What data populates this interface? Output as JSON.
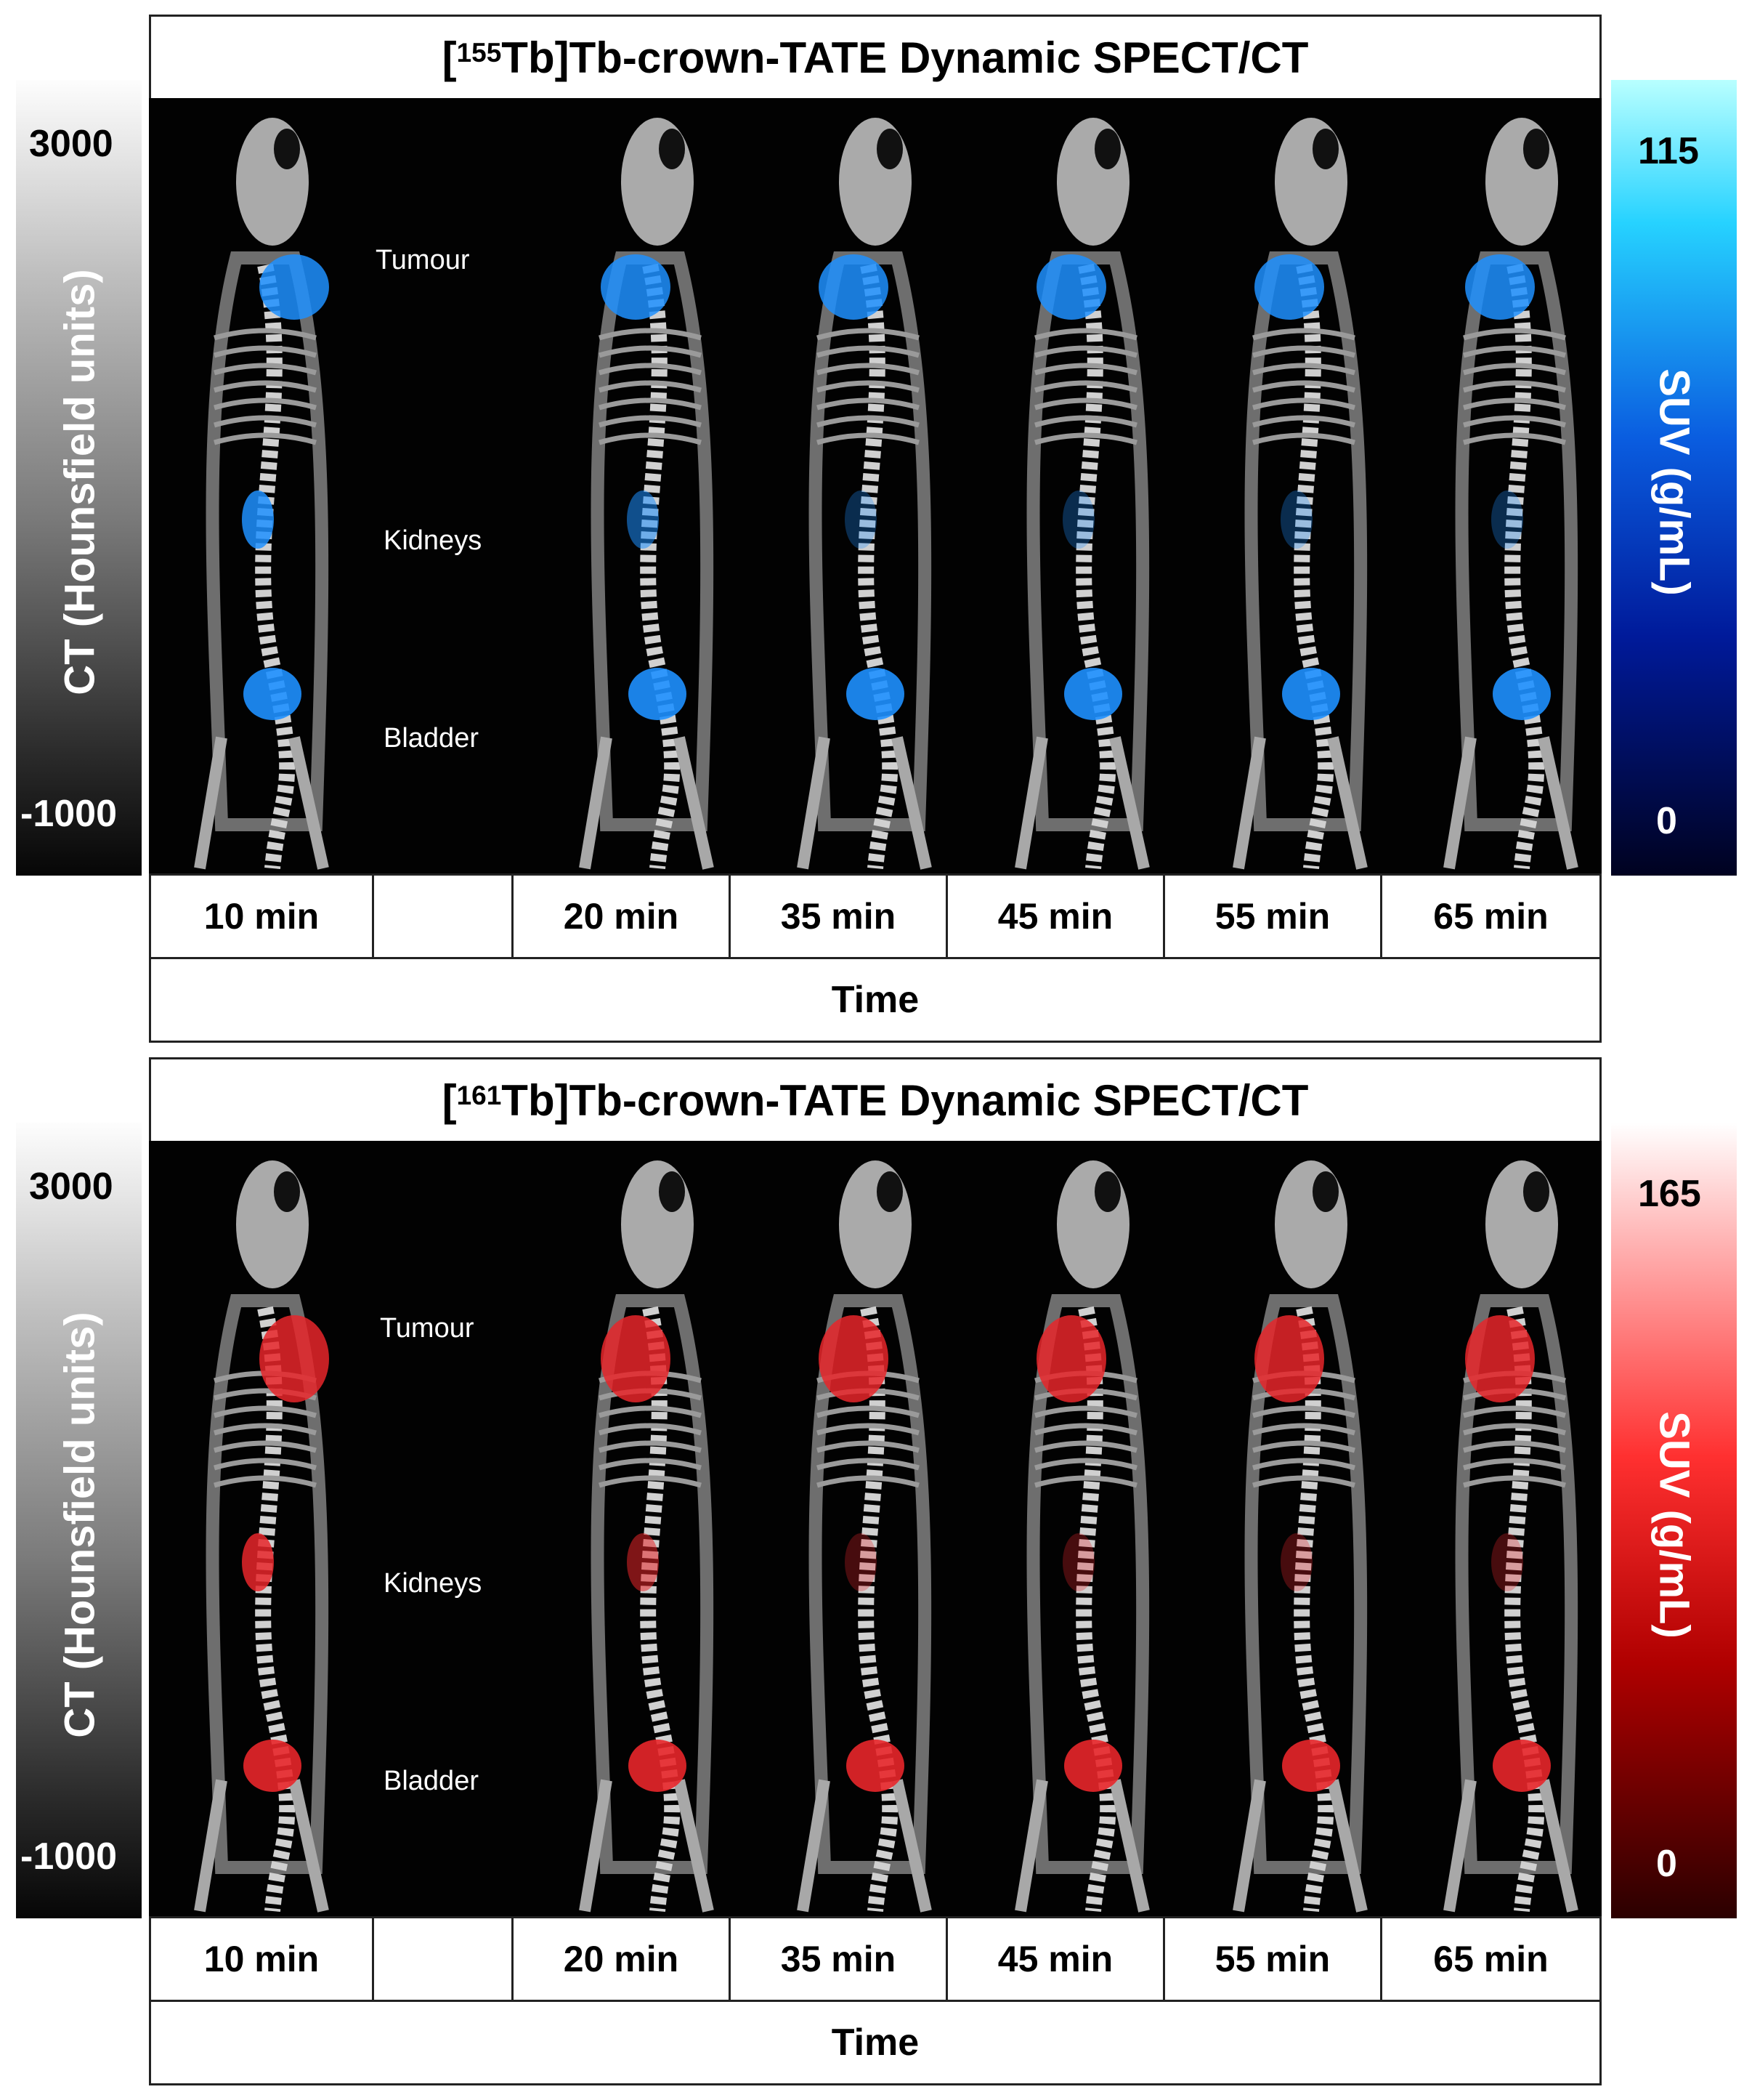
{
  "panels": [
    {
      "title_prefix": "[",
      "isotope_mass": "155",
      "title_rest": "Tb]Tb-crown-TATE Dynamic SPECT/CT",
      "ct_max": "3000",
      "ct_min": "-1000",
      "ct_label": "CT (Hounsfield units)",
      "suv_max": "115",
      "suv_min": "0",
      "suv_label": "SUV (g/mL)",
      "suv_colormap": "blue",
      "uptake_color": "#1e90ff",
      "annotations": {
        "tumour": "Tumour",
        "kidneys": "Kidneys",
        "bladder": "Bladder"
      },
      "times": [
        "10 min",
        "",
        "20 min",
        "35 min",
        "45 min",
        "55 min",
        "65 min"
      ],
      "axis_label": "Time"
    },
    {
      "title_prefix": "[",
      "isotope_mass": "161",
      "title_rest": "Tb]Tb-crown-TATE Dynamic SPECT/CT",
      "ct_max": "3000",
      "ct_min": "-1000",
      "ct_label": "CT (Hounsfield units)",
      "suv_max": "165",
      "suv_min": "0",
      "suv_label": "SUV (g/mL)",
      "suv_colormap": "red",
      "uptake_color": "#e8262a",
      "annotations": {
        "tumour": "Tumour",
        "kidneys": "Kidneys",
        "bladder": "Bladder"
      },
      "times": [
        "10 min",
        "",
        "20 min",
        "35 min",
        "45 min",
        "55 min",
        "65 min"
      ],
      "axis_label": "Time"
    }
  ]
}
